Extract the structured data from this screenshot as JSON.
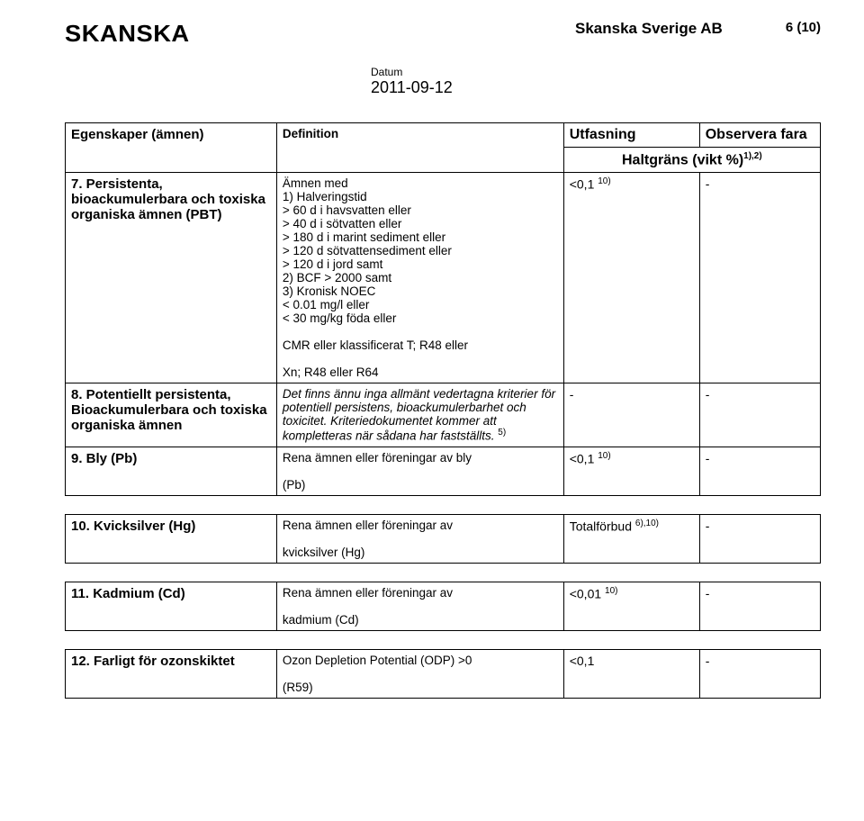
{
  "header": {
    "logo": "SKANSKA",
    "company": "Skanska Sverige AB",
    "pagecount": "6 (10)",
    "date_label": "Datum",
    "date_value": "2011-09-12"
  },
  "table1": {
    "head": {
      "c1": "Egenskaper (ämnen)",
      "c2": "Definition",
      "c3": "Utfasning",
      "c4": "Observera fara",
      "sub": "Haltgräns (vikt %)",
      "sub_sup": "1),2)"
    },
    "rows": [
      {
        "name": "7. Persistenta, bioackumulerbara och toxiska organiska ämnen (PBT)",
        "def_lines": [
          "Ämnen med",
          "1) Halveringstid",
          "> 60 d i havsvatten eller",
          "> 40 d i sötvatten eller",
          "> 180 d i marint sediment eller",
          "> 120 d sötvattensediment eller",
          "> 120 d i jord samt",
          "2) BCF > 2000 samt",
          "3) Kronisk NOEC",
          "< 0.01 mg/l eller",
          "< 30 mg/kg föda eller",
          "",
          "CMR eller klassificerat T; R48 eller",
          "",
          "Xn; R48 eller R64"
        ],
        "utf": "<0,1",
        "utf_sup": "10)",
        "obs": "-"
      },
      {
        "name": "8. Potentiellt persistenta, Bioackumulerbara och toxiska organiska ämnen",
        "def_italic": "Det finns ännu inga allmänt vedertagna kriterier för potentiell persistens, bioackumulerbarhet och toxicitet. Kriteriedokumentet kommer att kompletteras när sådana har fastställts.",
        "def_sup": "5)",
        "utf": "-",
        "obs": "-"
      },
      {
        "name": "9. Bly (Pb)",
        "def_line1": "Rena ämnen eller föreningar av bly",
        "def_line2": "(Pb)",
        "utf": "<0,1",
        "utf_sup": "10)",
        "obs": "-"
      }
    ]
  },
  "table2": {
    "row": {
      "name": "10. Kvicksilver (Hg)",
      "def_line1": "Rena ämnen eller föreningar av",
      "def_line2": "kvicksilver (Hg)",
      "utf": "Totalförbud",
      "utf_sup": "6),10)",
      "obs": "-"
    }
  },
  "table3": {
    "row": {
      "name": "11. Kadmium (Cd)",
      "def_line1": "Rena ämnen eller föreningar av",
      "def_line2": "kadmium (Cd)",
      "utf": "<0,01",
      "utf_sup": "10)",
      "obs": "-"
    }
  },
  "table4": {
    "row": {
      "name": "12. Farligt för ozonskiktet",
      "def_line1": "Ozon Depletion Potential (ODP) >0",
      "def_line2": "(R59)",
      "utf": "<0,1",
      "obs": "-"
    }
  }
}
